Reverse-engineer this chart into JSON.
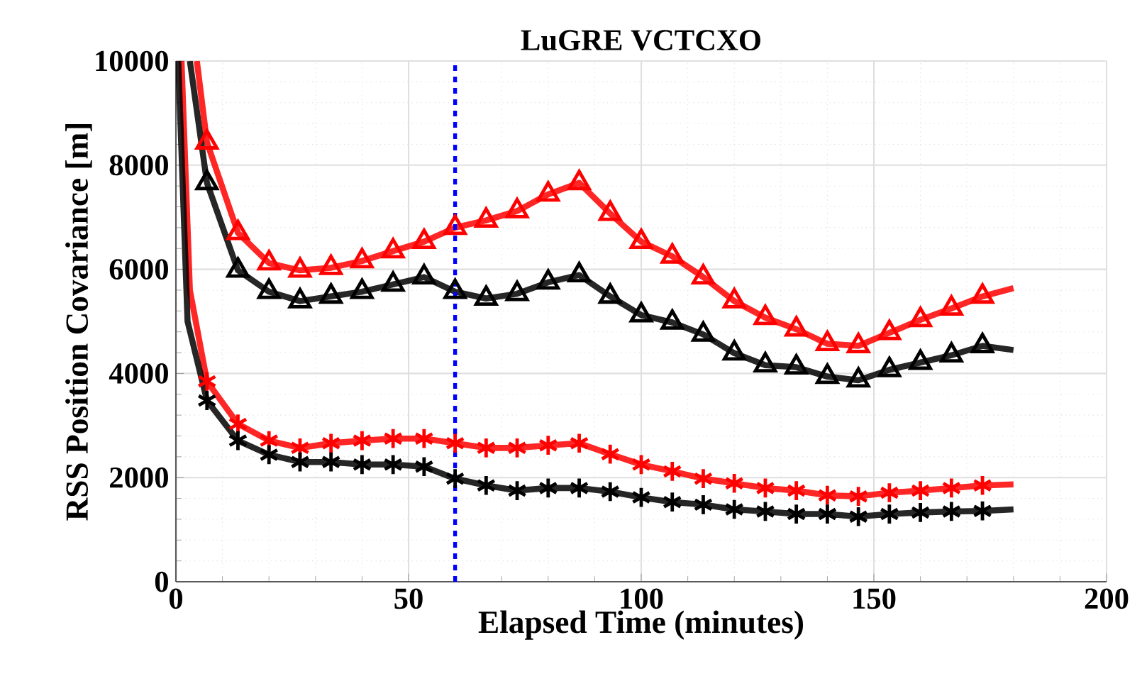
{
  "chart_data": {
    "type": "line",
    "title": "LuGRE VCTCXO",
    "xlabel": "Elapsed Time (minutes)",
    "ylabel": "RSS Position Covariance [m]",
    "xlim": [
      0,
      200
    ],
    "xticks": [
      0,
      50,
      100,
      150,
      200
    ],
    "ylim": [
      0,
      10000
    ],
    "yticks": [
      0,
      2000,
      4000,
      6000,
      8000,
      10000
    ],
    "grid": true,
    "ref_lines": [
      {
        "axis": "x",
        "value": 60,
        "color": "#0000ff",
        "line_style": "dashed"
      }
    ],
    "series": [
      {
        "color": "#ff0000",
        "marker": "none",
        "x": [
          4.5,
          6.67,
          13.33,
          20,
          26.67,
          33.33,
          40,
          46.67,
          53.33,
          60,
          66.67,
          73.33,
          80,
          86.67,
          93.33,
          100,
          106.67,
          113.33,
          120,
          126.67,
          133.33,
          140,
          146.67,
          153.33,
          160,
          166.67,
          173.33,
          180
        ],
        "values": [
          10000,
          8440,
          6700,
          6120,
          5980,
          6030,
          6160,
          6350,
          6530,
          6800,
          6940,
          7120,
          7440,
          7660,
          7070,
          6530,
          6250,
          5850,
          5390,
          5070,
          4850,
          4570,
          4530,
          4780,
          5030,
          5250,
          5480,
          5640
        ]
      },
      {
        "color": "#000000",
        "marker": "none",
        "x": [
          3.0,
          6.67,
          13.33,
          20,
          26.67,
          33.33,
          40,
          46.67,
          53.33,
          60,
          66.67,
          73.33,
          80,
          86.67,
          93.33,
          100,
          106.67,
          113.33,
          120,
          126.67,
          133.33,
          140,
          146.67,
          153.33,
          160,
          166.67,
          173.33,
          180
        ],
        "values": [
          10000,
          7660,
          5980,
          5570,
          5390,
          5480,
          5570,
          5710,
          5850,
          5570,
          5440,
          5530,
          5750,
          5890,
          5480,
          5120,
          4980,
          4750,
          4390,
          4160,
          4120,
          3940,
          3870,
          4070,
          4210,
          4350,
          4530,
          4450
        ]
      },
      {
        "color": "#ff0000",
        "marker": "none",
        "x": [
          1.2,
          3.0,
          6.67,
          13.33,
          20,
          26.67,
          33.33,
          40,
          46.67,
          53.33,
          60,
          66.67,
          73.33,
          80,
          86.67,
          93.33,
          100,
          106.67,
          113.33,
          120,
          126.67,
          133.33,
          140,
          146.67,
          153.33,
          160,
          166.67,
          173.33,
          180
        ],
        "values": [
          10000,
          5600,
          3850,
          3030,
          2710,
          2570,
          2660,
          2710,
          2750,
          2750,
          2660,
          2570,
          2570,
          2620,
          2660,
          2450,
          2250,
          2120,
          1980,
          1890,
          1800,
          1750,
          1660,
          1640,
          1710,
          1750,
          1800,
          1850,
          1870
        ]
      },
      {
        "color": "#000000",
        "marker": "none",
        "x": [
          0.5,
          2.5,
          6.67,
          13.33,
          20,
          26.67,
          33.33,
          40,
          46.67,
          53.33,
          60,
          66.67,
          73.33,
          80,
          86.67,
          93.33,
          100,
          106.67,
          113.33,
          120,
          126.67,
          133.33,
          140,
          146.67,
          153.33,
          160,
          166.67,
          173.33,
          180
        ],
        "values": [
          10000,
          5000,
          3480,
          2710,
          2440,
          2300,
          2300,
          2250,
          2250,
          2210,
          1980,
          1850,
          1750,
          1800,
          1800,
          1730,
          1620,
          1530,
          1480,
          1390,
          1350,
          1300,
          1300,
          1250,
          1300,
          1330,
          1350,
          1360,
          1390
        ]
      },
      {
        "type": "scatter",
        "color": "#ff0000",
        "marker": "triangle",
        "x": [
          6.67,
          13.33,
          20,
          26.67,
          33.33,
          40,
          46.67,
          53.33,
          60,
          66.67,
          73.33,
          80,
          86.67,
          93.33,
          100,
          106.67,
          113.33,
          120,
          126.67,
          133.33,
          140,
          146.67,
          153.33,
          160,
          166.67,
          173.33
        ],
        "values": [
          8440,
          6700,
          6120,
          5980,
          6030,
          6160,
          6350,
          6530,
          6800,
          6940,
          7120,
          7440,
          7660,
          7070,
          6530,
          6250,
          5850,
          5390,
          5070,
          4850,
          4570,
          4530,
          4780,
          5030,
          5250,
          5480
        ]
      },
      {
        "type": "scatter",
        "color": "#000000",
        "marker": "triangle",
        "x": [
          6.67,
          13.33,
          20,
          26.67,
          33.33,
          40,
          46.67,
          53.33,
          60,
          66.67,
          73.33,
          80,
          86.67,
          93.33,
          100,
          106.67,
          113.33,
          120,
          126.67,
          133.33,
          140,
          146.67,
          153.33,
          160,
          166.67,
          173.33
        ],
        "values": [
          7660,
          5980,
          5570,
          5390,
          5480,
          5570,
          5710,
          5850,
          5570,
          5440,
          5530,
          5750,
          5890,
          5480,
          5120,
          4980,
          4750,
          4390,
          4160,
          4120,
          3940,
          3870,
          4070,
          4210,
          4350,
          4530
        ]
      },
      {
        "type": "scatter",
        "color": "#ff0000",
        "marker": "cross",
        "x": [
          6.67,
          13.33,
          20,
          26.67,
          33.33,
          40,
          46.67,
          53.33,
          60,
          66.67,
          73.33,
          80,
          86.67,
          93.33,
          100,
          106.67,
          113.33,
          120,
          126.67,
          133.33,
          140,
          146.67,
          153.33,
          160,
          166.67,
          173.33
        ],
        "values": [
          3850,
          3030,
          2710,
          2570,
          2660,
          2710,
          2750,
          2750,
          2660,
          2570,
          2570,
          2620,
          2660,
          2450,
          2250,
          2120,
          1980,
          1890,
          1800,
          1750,
          1660,
          1640,
          1710,
          1750,
          1800,
          1850
        ]
      },
      {
        "type": "scatter",
        "color": "#000000",
        "marker": "cross",
        "x": [
          6.67,
          13.33,
          20,
          26.67,
          33.33,
          40,
          46.67,
          53.33,
          60,
          66.67,
          73.33,
          80,
          86.67,
          93.33,
          100,
          106.67,
          113.33,
          120,
          126.67,
          133.33,
          140,
          146.67,
          153.33,
          160,
          166.67,
          173.33
        ],
        "values": [
          3480,
          2710,
          2440,
          2300,
          2300,
          2250,
          2250,
          2210,
          1980,
          1850,
          1750,
          1800,
          1800,
          1730,
          1620,
          1530,
          1480,
          1390,
          1350,
          1300,
          1300,
          1250,
          1300,
          1330,
          1350,
          1360
        ]
      }
    ]
  }
}
